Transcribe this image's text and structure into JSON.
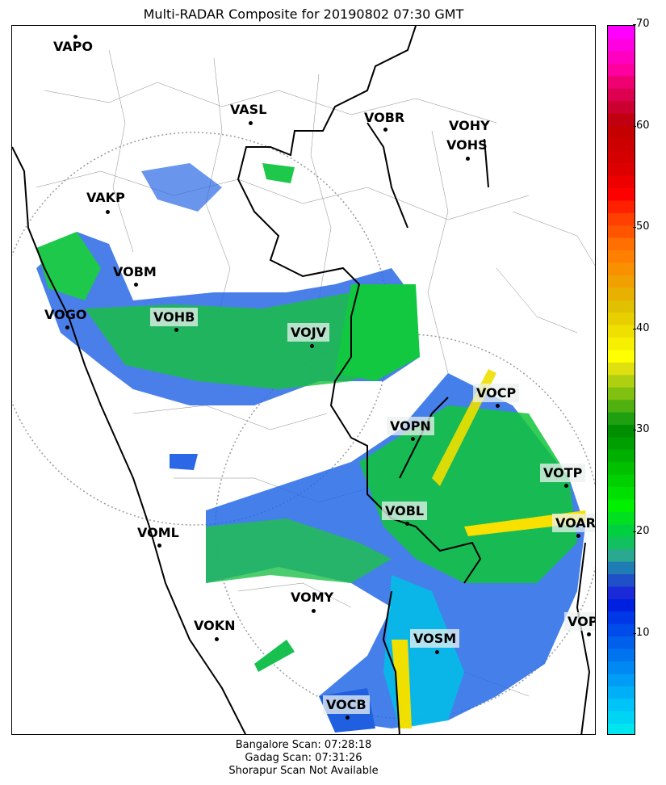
{
  "title": "Multi-RADAR Composite for 20190802 07:30 GMT",
  "stations": [
    {
      "name": "VAPO"
    },
    {
      "name": "VASL"
    },
    {
      "name": "VOBR"
    },
    {
      "name": "VOHY"
    },
    {
      "name": "VOHS"
    },
    {
      "name": "VAKP"
    },
    {
      "name": "VOBM"
    },
    {
      "name": "VOGO"
    },
    {
      "name": "VOHB"
    },
    {
      "name": "VOJV"
    },
    {
      "name": "VOCP"
    },
    {
      "name": "VOPN"
    },
    {
      "name": "VOTP"
    },
    {
      "name": "VOBL"
    },
    {
      "name": "VOAR"
    },
    {
      "name": "VOML"
    },
    {
      "name": "VOMY"
    },
    {
      "name": "VOKN"
    },
    {
      "name": "VOPC"
    },
    {
      "name": "VOSM"
    },
    {
      "name": "VOCB"
    }
  ],
  "colorbar": {
    "min": 0,
    "max": 70,
    "ticks": [
      "10",
      "20",
      "30",
      "40",
      "50",
      "60",
      "70"
    ],
    "colors": [
      "#00e5ee",
      "#00d4f5",
      "#00c3f7",
      "#00b0f7",
      "#009cf5",
      "#0088f2",
      "#0074ef",
      "#0060ec",
      "#004cea",
      "#0038e8",
      "#0020e0",
      "#1a2ad8",
      "#2050c8",
      "#207cb4",
      "#2aa890",
      "#12c060",
      "#00d040",
      "#00e020",
      "#00f000",
      "#00e000",
      "#00d000",
      "#00c000",
      "#00b000",
      "#009f00",
      "#008f00",
      "#1fa010",
      "#4fb010",
      "#7fc010",
      "#afd010",
      "#dfe010",
      "#ffff00",
      "#f7f000",
      "#f0e000",
      "#e8d000",
      "#e0c000",
      "#e8b000",
      "#f0a000",
      "#f89000",
      "#ff8000",
      "#ff7000",
      "#ff5500",
      "#ff4000",
      "#ff2000",
      "#ff0000",
      "#ee0000",
      "#dd0000",
      "#d40000",
      "#cc0000",
      "#c40000",
      "#c00010",
      "#cc0030",
      "#dd0050",
      "#ee0070",
      "#ff00a0",
      "#ff00c0",
      "#ff00e0",
      "#ff00ff"
    ]
  },
  "footer": [
    "Bangalore Scan: 07:28:18",
    "Gadag Scan: 07:31:26",
    "Shorapur Scan Not Available"
  ]
}
